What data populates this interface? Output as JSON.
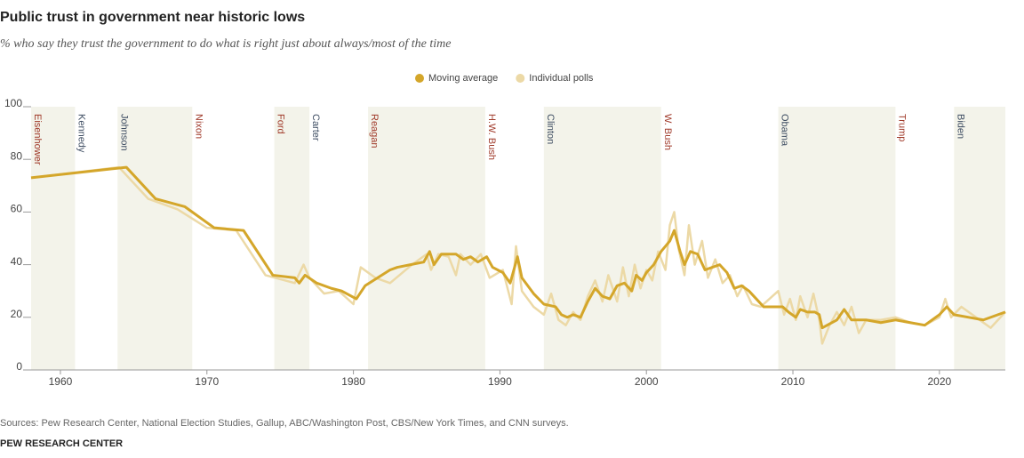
{
  "chart_data": {
    "type": "line",
    "title": "Public trust in government near historic lows",
    "subtitle": "% who say they trust the government to do what is right just about always/most of the time",
    "source": "Sources: Pew Research Center, National Election Studies, Gallup, ABC/Washington Post, CBS/New York Times, and CNN surveys.",
    "brand": "PEW RESEARCH CENTER",
    "xlim": [
      1958,
      2024.5
    ],
    "xticks": [
      1960,
      1970,
      1980,
      1990,
      2000,
      2010,
      2020
    ],
    "ylim": [
      0,
      100
    ],
    "yticks": [
      0,
      20,
      40,
      60,
      80,
      100
    ],
    "grid": false,
    "legend": "top",
    "presidents": [
      {
        "name": "Eisenhower",
        "start": 1958,
        "end": 1961,
        "color": "#a03a2a",
        "shaded": true
      },
      {
        "name": "Kennedy",
        "start": 1961,
        "end": 1963.9,
        "color": "#3f4e63",
        "shaded": false
      },
      {
        "name": "Johnson",
        "start": 1963.9,
        "end": 1969,
        "color": "#3f4e63",
        "shaded": true
      },
      {
        "name": "Nixon",
        "start": 1969,
        "end": 1974.6,
        "color": "#a03a2a",
        "shaded": false
      },
      {
        "name": "Ford",
        "start": 1974.6,
        "end": 1977,
        "color": "#a03a2a",
        "shaded": true
      },
      {
        "name": "Carter",
        "start": 1977,
        "end": 1981,
        "color": "#3f4e63",
        "shaded": false
      },
      {
        "name": "Reagan",
        "start": 1981,
        "end": 1989,
        "color": "#a03a2a",
        "shaded": true
      },
      {
        "name": "H.W. Bush",
        "start": 1989,
        "end": 1993,
        "color": "#a03a2a",
        "shaded": false
      },
      {
        "name": "Clinton",
        "start": 1993,
        "end": 2001,
        "color": "#3f4e63",
        "shaded": true
      },
      {
        "name": "W. Bush",
        "start": 2001,
        "end": 2009,
        "color": "#a03a2a",
        "shaded": false
      },
      {
        "name": "Obama",
        "start": 2009,
        "end": 2017,
        "color": "#3f4e63",
        "shaded": true
      },
      {
        "name": "Trump",
        "start": 2017,
        "end": 2021,
        "color": "#a03a2a",
        "shaded": false
      },
      {
        "name": "Biden",
        "start": 2021,
        "end": 2024.5,
        "color": "#3f4e63",
        "shaded": true
      }
    ],
    "series": [
      {
        "name": "Individual polls",
        "color": "#ecd9a6",
        "x": [
          1958,
          1964,
          1966,
          1968,
          1970,
          1972,
          1974,
          1976,
          1976.6,
          1977,
          1978,
          1979,
          1980,
          1980.5,
          1981.5,
          1982.5,
          1984,
          1985,
          1985.3,
          1985.8,
          1986.5,
          1987,
          1987.3,
          1988,
          1988.7,
          1989.3,
          1990.2,
          1990.8,
          1991.1,
          1991.5,
          1992.3,
          1993,
          1993.5,
          1994,
          1994.5,
          1995,
          1995.5,
          1996,
          1996.5,
          1997,
          1997.4,
          1998,
          1998.4,
          1998.8,
          1999.2,
          1999.6,
          2000,
          2000.4,
          2000.8,
          2001.3,
          2001.6,
          2001.9,
          2002.2,
          2002.6,
          2002.9,
          2003.3,
          2003.8,
          2004.2,
          2004.7,
          2005.2,
          2005.7,
          2006.2,
          2006.6,
          2007.2,
          2007.8,
          2008.4,
          2009,
          2009.4,
          2009.8,
          2010.2,
          2010.5,
          2011,
          2011.4,
          2011.8,
          2012,
          2012.5,
          2013,
          2013.5,
          2014,
          2014.5,
          2015,
          2016,
          2017,
          2018,
          2019,
          2020,
          2020.4,
          2020.8,
          2021.5,
          2022.5,
          2023.5,
          2024.5
        ],
        "values": [
          73,
          77,
          65,
          61,
          54,
          53,
          36,
          33,
          40,
          35,
          29,
          30,
          25,
          39,
          35,
          33,
          40,
          44,
          38,
          44,
          43,
          36,
          44,
          40,
          44,
          35,
          38,
          25,
          47,
          30,
          24,
          21,
          29,
          19,
          17,
          22,
          19,
          28,
          34,
          26,
          36,
          26,
          39,
          28,
          40,
          31,
          38,
          34,
          45,
          38,
          55,
          60,
          46,
          36,
          55,
          40,
          49,
          35,
          42,
          33,
          36,
          28,
          32,
          25,
          24,
          27,
          30,
          21,
          27,
          19,
          28,
          20,
          29,
          19,
          10,
          17,
          22,
          17,
          24,
          14,
          19,
          19,
          20,
          18,
          17,
          20,
          27,
          20,
          24,
          20,
          16,
          22
        ]
      },
      {
        "name": "Moving average",
        "color": "#d4a62a",
        "x": [
          1958,
          1964.5,
          1966.5,
          1968.5,
          1970.5,
          1972.5,
          1974.5,
          1976,
          1976.3,
          1976.7,
          1977.5,
          1978.5,
          1979.2,
          1980.2,
          1980.8,
          1982.5,
          1983,
          1984.8,
          1985.2,
          1985.5,
          1986,
          1987,
          1987.5,
          1988,
          1988.5,
          1989.1,
          1989.5,
          1990.2,
          1990.7,
          1991.2,
          1991.5,
          1992.3,
          1993,
          1993.8,
          1994.2,
          1994.6,
          1995,
          1995.5,
          1996,
          1996.5,
          1997,
          1997.5,
          1998,
          1998.5,
          1999,
          1999.3,
          1999.7,
          2000,
          2000.5,
          2001,
          2001.6,
          2001.9,
          2002.3,
          2002.6,
          2003,
          2003.5,
          2004,
          2004.5,
          2005,
          2005.5,
          2006,
          2006.5,
          2007,
          2007.5,
          2008,
          2008.8,
          2009.3,
          2009.7,
          2010.2,
          2010.5,
          2011,
          2011.5,
          2011.8,
          2012,
          2013,
          2013.5,
          2014,
          2015,
          2016,
          2017,
          2018,
          2019,
          2020,
          2020.5,
          2021,
          2022,
          2023,
          2024.5
        ],
        "values": [
          73,
          77,
          65,
          62,
          54,
          53,
          36,
          35,
          33,
          36,
          33,
          31,
          30,
          27,
          32,
          38,
          39,
          41,
          45,
          40,
          44,
          44,
          42,
          43,
          41,
          43,
          39,
          37,
          33,
          43,
          35,
          29,
          25,
          24,
          21,
          20,
          21,
          20,
          26,
          31,
          28,
          27,
          32,
          33,
          30,
          36,
          34,
          37,
          40,
          45,
          49,
          53,
          45,
          40,
          45,
          44,
          38,
          39,
          40,
          37,
          31,
          32,
          30,
          27,
          24,
          24,
          24,
          22,
          20,
          23,
          22,
          22,
          21,
          16,
          19,
          23,
          19,
          19,
          18,
          19,
          18,
          17,
          21,
          24,
          21,
          20,
          19,
          22
        ]
      }
    ]
  }
}
